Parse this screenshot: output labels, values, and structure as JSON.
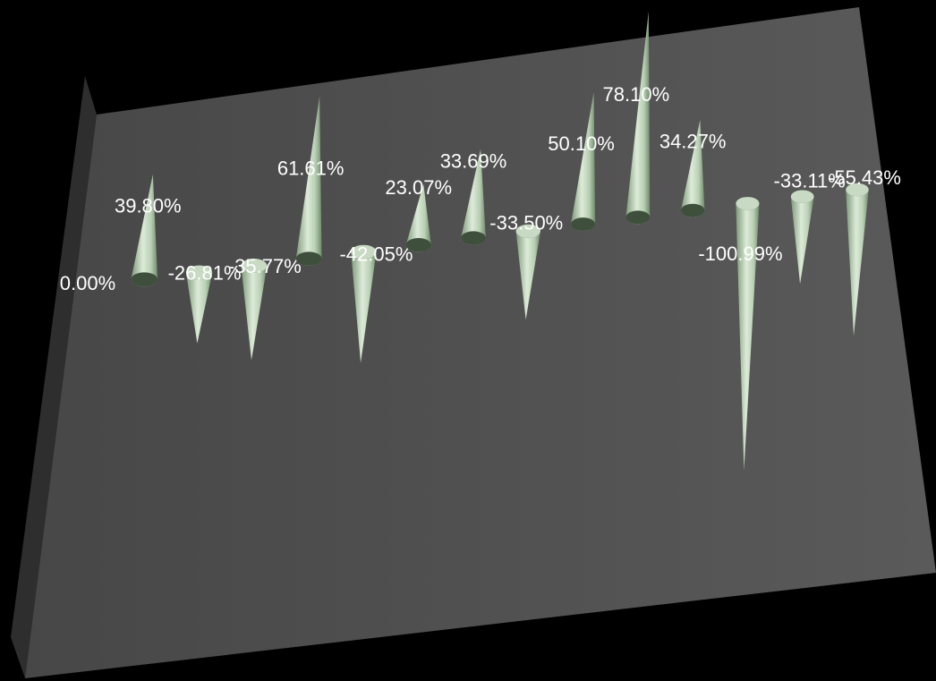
{
  "chart_data": {
    "type": "bar",
    "style": "3d-cone",
    "categories": [],
    "values": [
      0.0,
      39.8,
      -26.81,
      -35.77,
      61.61,
      -42.05,
      23.07,
      33.69,
      -33.5,
      50.1,
      78.1,
      34.27,
      -100.99,
      -33.11,
      -55.43
    ],
    "labels": [
      "0.00%",
      "39.80%",
      "-26.81%",
      "-35.77%",
      "61.61%",
      "-42.05%",
      "23.07%",
      "33.69%",
      "-33.50%",
      "50.10%",
      "78.10%",
      "34.27%",
      "-100.99%",
      "-33.11%",
      "-55.43%"
    ],
    "title": "",
    "xlabel": "",
    "ylabel": "",
    "grid": false,
    "legend": "none",
    "colors": {
      "background": "#000000",
      "plane": "#4f4f4f",
      "plane_side": "#2e2e2e",
      "cone_light": "#dcebd8",
      "cone_mid": "#a9c2a4",
      "cone_dark": "#5f7a5c",
      "label": "#ffffff"
    }
  }
}
